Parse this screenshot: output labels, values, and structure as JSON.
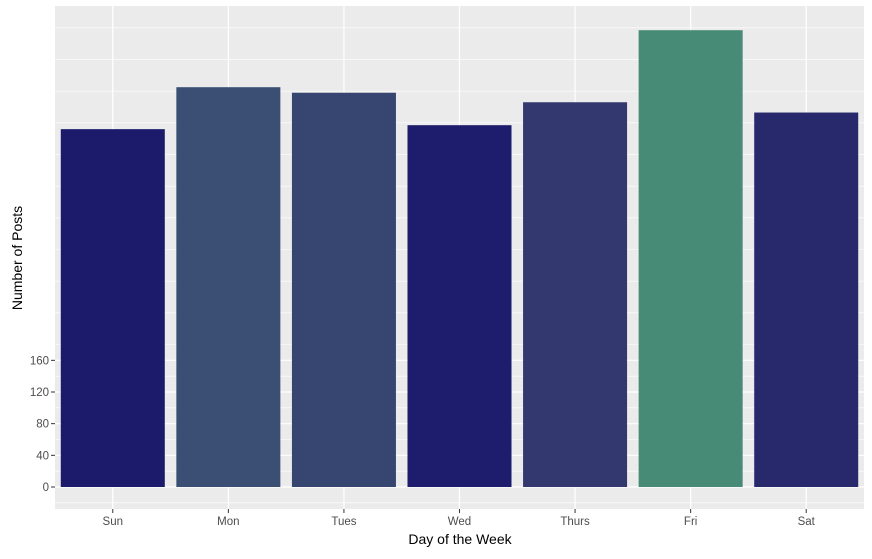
{
  "chart_data": {
    "type": "bar",
    "title": "",
    "xlabel": "Day of the Week",
    "ylabel": "Number of Posts",
    "categories": [
      "Sun",
      "Mon",
      "Tues",
      "Wed",
      "Thurs",
      "Fri",
      "Sat"
    ],
    "values": [
      452,
      505,
      498,
      457,
      486,
      577,
      473
    ],
    "colors": [
      "#1b1a6b",
      "#3b4f75",
      "#364671",
      "#1d1c6d",
      "#33386f",
      "#478b77",
      "#28296c"
    ],
    "yticks": [
      0,
      40,
      80,
      120,
      160
    ],
    "ylim": [
      -20,
      600
    ],
    "grid": true,
    "legend": "none",
    "panel_background": "#ebebeb",
    "grid_color": "#ffffff"
  }
}
